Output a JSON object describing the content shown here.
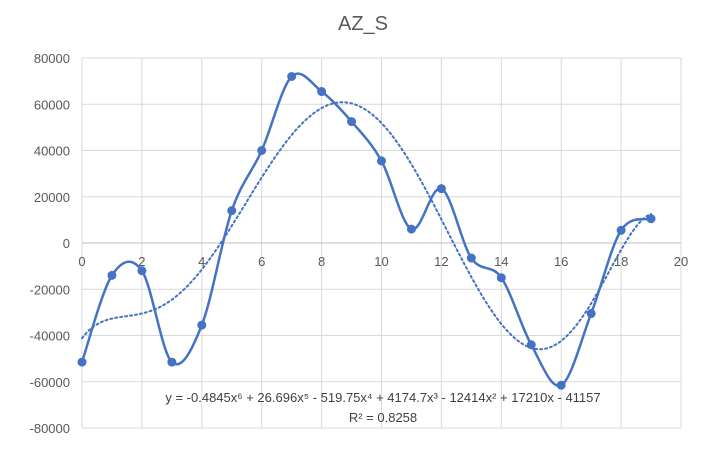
{
  "chart_data": {
    "type": "scatter",
    "title": "AZ_S",
    "xlabel": "",
    "ylabel": "",
    "xlim": [
      0,
      20
    ],
    "ylim": [
      -80000,
      80000
    ],
    "x_ticks": [
      0,
      2,
      4,
      6,
      8,
      10,
      12,
      14,
      16,
      18,
      20
    ],
    "y_ticks": [
      80000,
      60000,
      40000,
      20000,
      0,
      -20000,
      -40000,
      -60000,
      -80000
    ],
    "grid": "vertical and horizontal major gridlines",
    "legend": "none",
    "series": [
      {
        "x": [
          0,
          1,
          2,
          3,
          4,
          5,
          6,
          7,
          8,
          9,
          10,
          11,
          12,
          13,
          14,
          15,
          16,
          17,
          18,
          19
        ],
        "values": [
          -51500,
          -14000,
          -12000,
          -51500,
          -35500,
          14000,
          40000,
          72000,
          65500,
          52500,
          35500,
          6000,
          23500,
          -6500,
          -15000,
          -44000,
          -61500,
          -30500,
          5500,
          10500
        ],
        "color": "#4472C4",
        "line": "smoothed",
        "markers": "circle"
      }
    ],
    "trendline": {
      "kind": "polynomial",
      "order": 6,
      "color": "#4472C4",
      "style": "dotted",
      "coefficients": [
        -41157,
        17210,
        -12414,
        4174.7,
        -519.75,
        26.696,
        -0.4845
      ],
      "x_range": [
        0,
        19
      ],
      "equation": "y = -0.4845x⁶ + 26.696x⁵ - 519.75x⁴ + 4174.7x³ - 12414x² + 17210x - 41157",
      "r_squared": "R² = 0.8258"
    },
    "colors": {
      "series": "#4472C4",
      "grid": "#D9D9D9",
      "text": "#595959"
    }
  }
}
